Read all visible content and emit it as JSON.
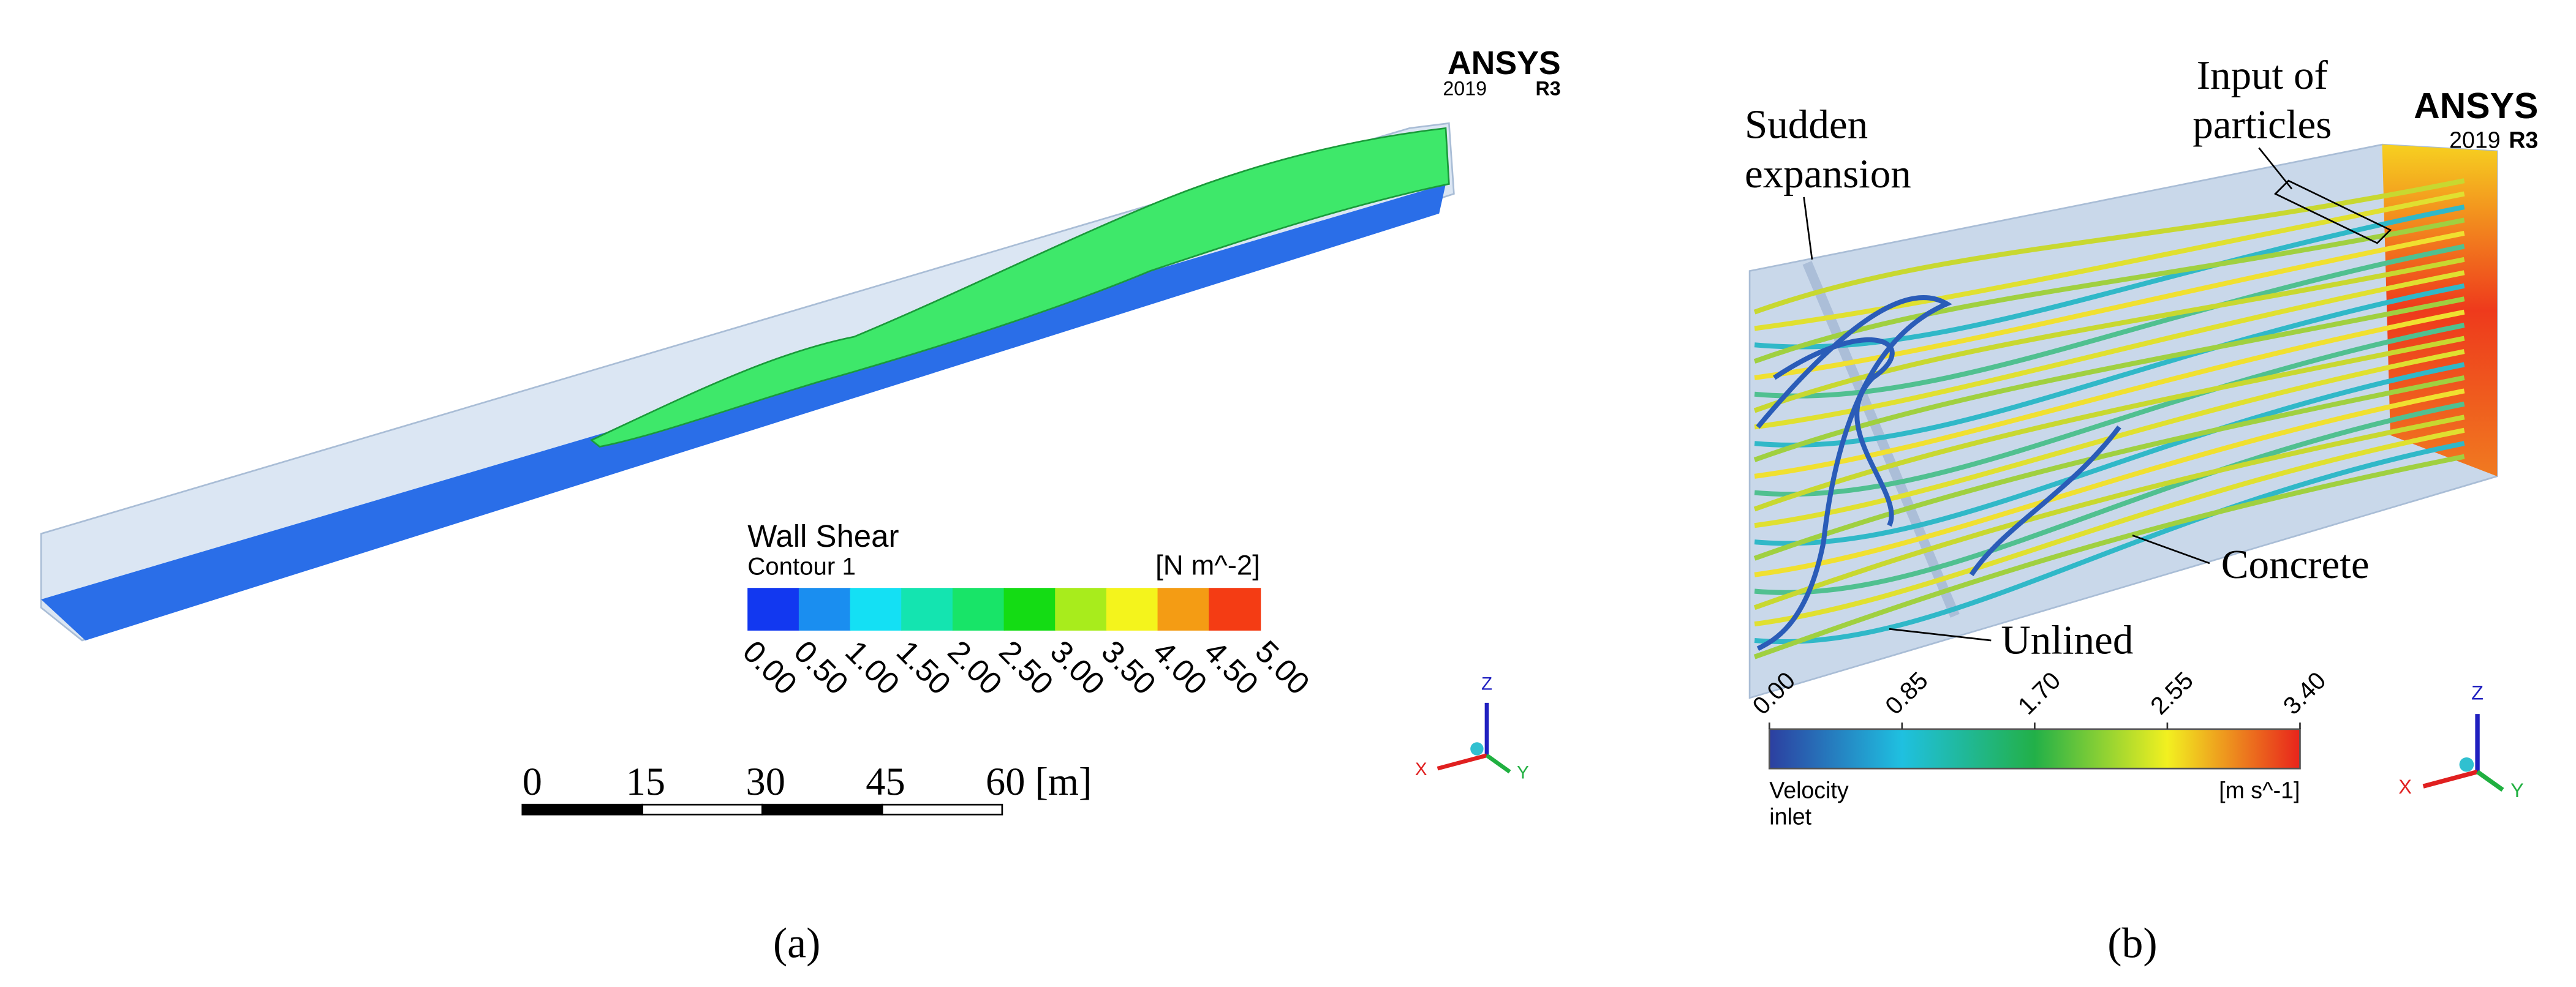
{
  "panel_a": {
    "logo": "ANSYS",
    "version": "2019",
    "release": "R3",
    "legend_title": "Wall Shear",
    "legend_subtitle": "Contour 1",
    "unit": "[N m^-2]",
    "colorbar_labels": [
      "0.00",
      "0.50",
      "1.00",
      "1.50",
      "2.00",
      "2.50",
      "3.00",
      "3.50",
      "4.00",
      "4.50",
      "5.00"
    ],
    "scale_labels": [
      "0",
      "15",
      "30",
      "45",
      "60 [m]"
    ],
    "axes": [
      "Z",
      "X",
      "Y"
    ],
    "caption": "(a)"
  },
  "panel_b": {
    "logo": "ANSYS",
    "version": "2019",
    "release": "R3",
    "label_input": [
      "Input of",
      "particles"
    ],
    "label_expansion": [
      "Sudden",
      "expansion"
    ],
    "label_concrete": "Concrete",
    "label_unlined": "Unlined",
    "colorbar_labels": [
      "0.00",
      "0.85",
      "1.70",
      "2.55",
      "3.40"
    ],
    "legend_title": [
      "Velocity",
      "inlet"
    ],
    "unit": "[m s^-1]",
    "axes": [
      "Z",
      "X",
      "Y"
    ],
    "caption": "(b)"
  }
}
